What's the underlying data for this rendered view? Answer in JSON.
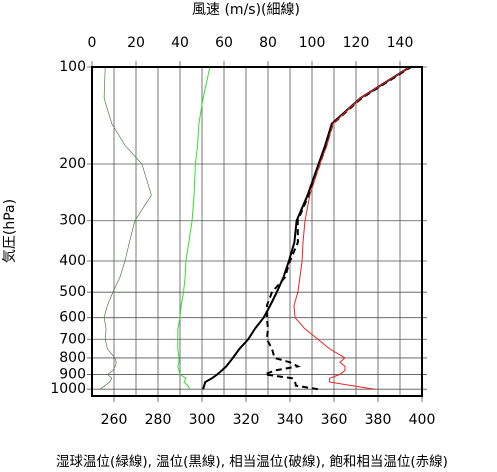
{
  "chart_data": {
    "type": "line",
    "title": "風速 (m/s)(細線)",
    "ylabel": "気圧(hPa)",
    "caption": "湿球温位(緑線), 温位(黒線), 相当温位(破線), 飽和相当温位(赤線)",
    "y": [
      1000,
      975,
      950,
      925,
      900,
      875,
      850,
      825,
      800,
      750,
      700,
      650,
      600,
      550,
      500,
      450,
      400,
      350,
      300,
      250,
      200,
      175,
      150,
      125,
      100
    ],
    "ylim": [
      1050,
      100
    ],
    "yscale": "log",
    "yticks": [
      100,
      200,
      300,
      400,
      500,
      600,
      700,
      800,
      900,
      1000
    ],
    "xlim": [
      250,
      400
    ],
    "xticks": [
      260,
      280,
      300,
      320,
      340,
      360,
      380,
      400
    ],
    "x2lim": [
      0,
      150
    ],
    "x2ticks": [
      0,
      20,
      40,
      60,
      80,
      100,
      120,
      140
    ],
    "grid": true,
    "series": [
      {
        "color": "#33dd33",
        "width": 1,
        "dash": false,
        "values": [
          294.5,
          293.6,
          291.8,
          292.7,
          290,
          289.5,
          289,
          289.5,
          289.5,
          289,
          289,
          289,
          290,
          290.5,
          291.6,
          292.3,
          292.7,
          294,
          295.5,
          296.4,
          297,
          298,
          298.6,
          300.5,
          303.6
        ]
      },
      {
        "color": "#000000",
        "width": 2,
        "dash": false,
        "values": [
          300.5,
          301,
          301.5,
          304.5,
          307,
          309,
          311,
          312.5,
          314,
          317,
          321,
          324,
          328,
          331,
          334,
          337,
          339.5,
          342,
          343,
          348,
          353,
          356,
          359,
          372,
          394.5
        ]
      },
      {
        "color": "#000000",
        "width": 2,
        "dash": true,
        "values": [
          352.7,
          342.7,
          342.3,
          341,
          328.6,
          333,
          343.6,
          340,
          333,
          331.8,
          329.5,
          330,
          329.5,
          329.5,
          331.8,
          337.7,
          340,
          343.6,
          343.5,
          348.5,
          353.5,
          356.5,
          359.5,
          372.5,
          395
        ]
      },
      {
        "color": "#ee2222",
        "width": 1,
        "dash": false,
        "values": [
          378.6,
          368,
          358,
          358,
          362.7,
          365,
          365,
          362.7,
          365,
          358,
          352.7,
          346.8,
          342.3,
          341.8,
          343.6,
          344.5,
          345.5,
          345.9,
          346.8,
          349,
          353.6,
          356.8,
          359.5,
          372,
          394.5
        ]
      },
      {
        "color": "#557755",
        "width": 0.7,
        "dash": false,
        "axis": "x2",
        "values": [
          3.6,
          6,
          8,
          9,
          7,
          9.5,
          10.5,
          11,
          10.5,
          7,
          6,
          6.4,
          5.5,
          7,
          9.5,
          12.7,
          15,
          17,
          19.5,
          27,
          22.7,
          15,
          9,
          5.5,
          6
        ]
      }
    ]
  }
}
